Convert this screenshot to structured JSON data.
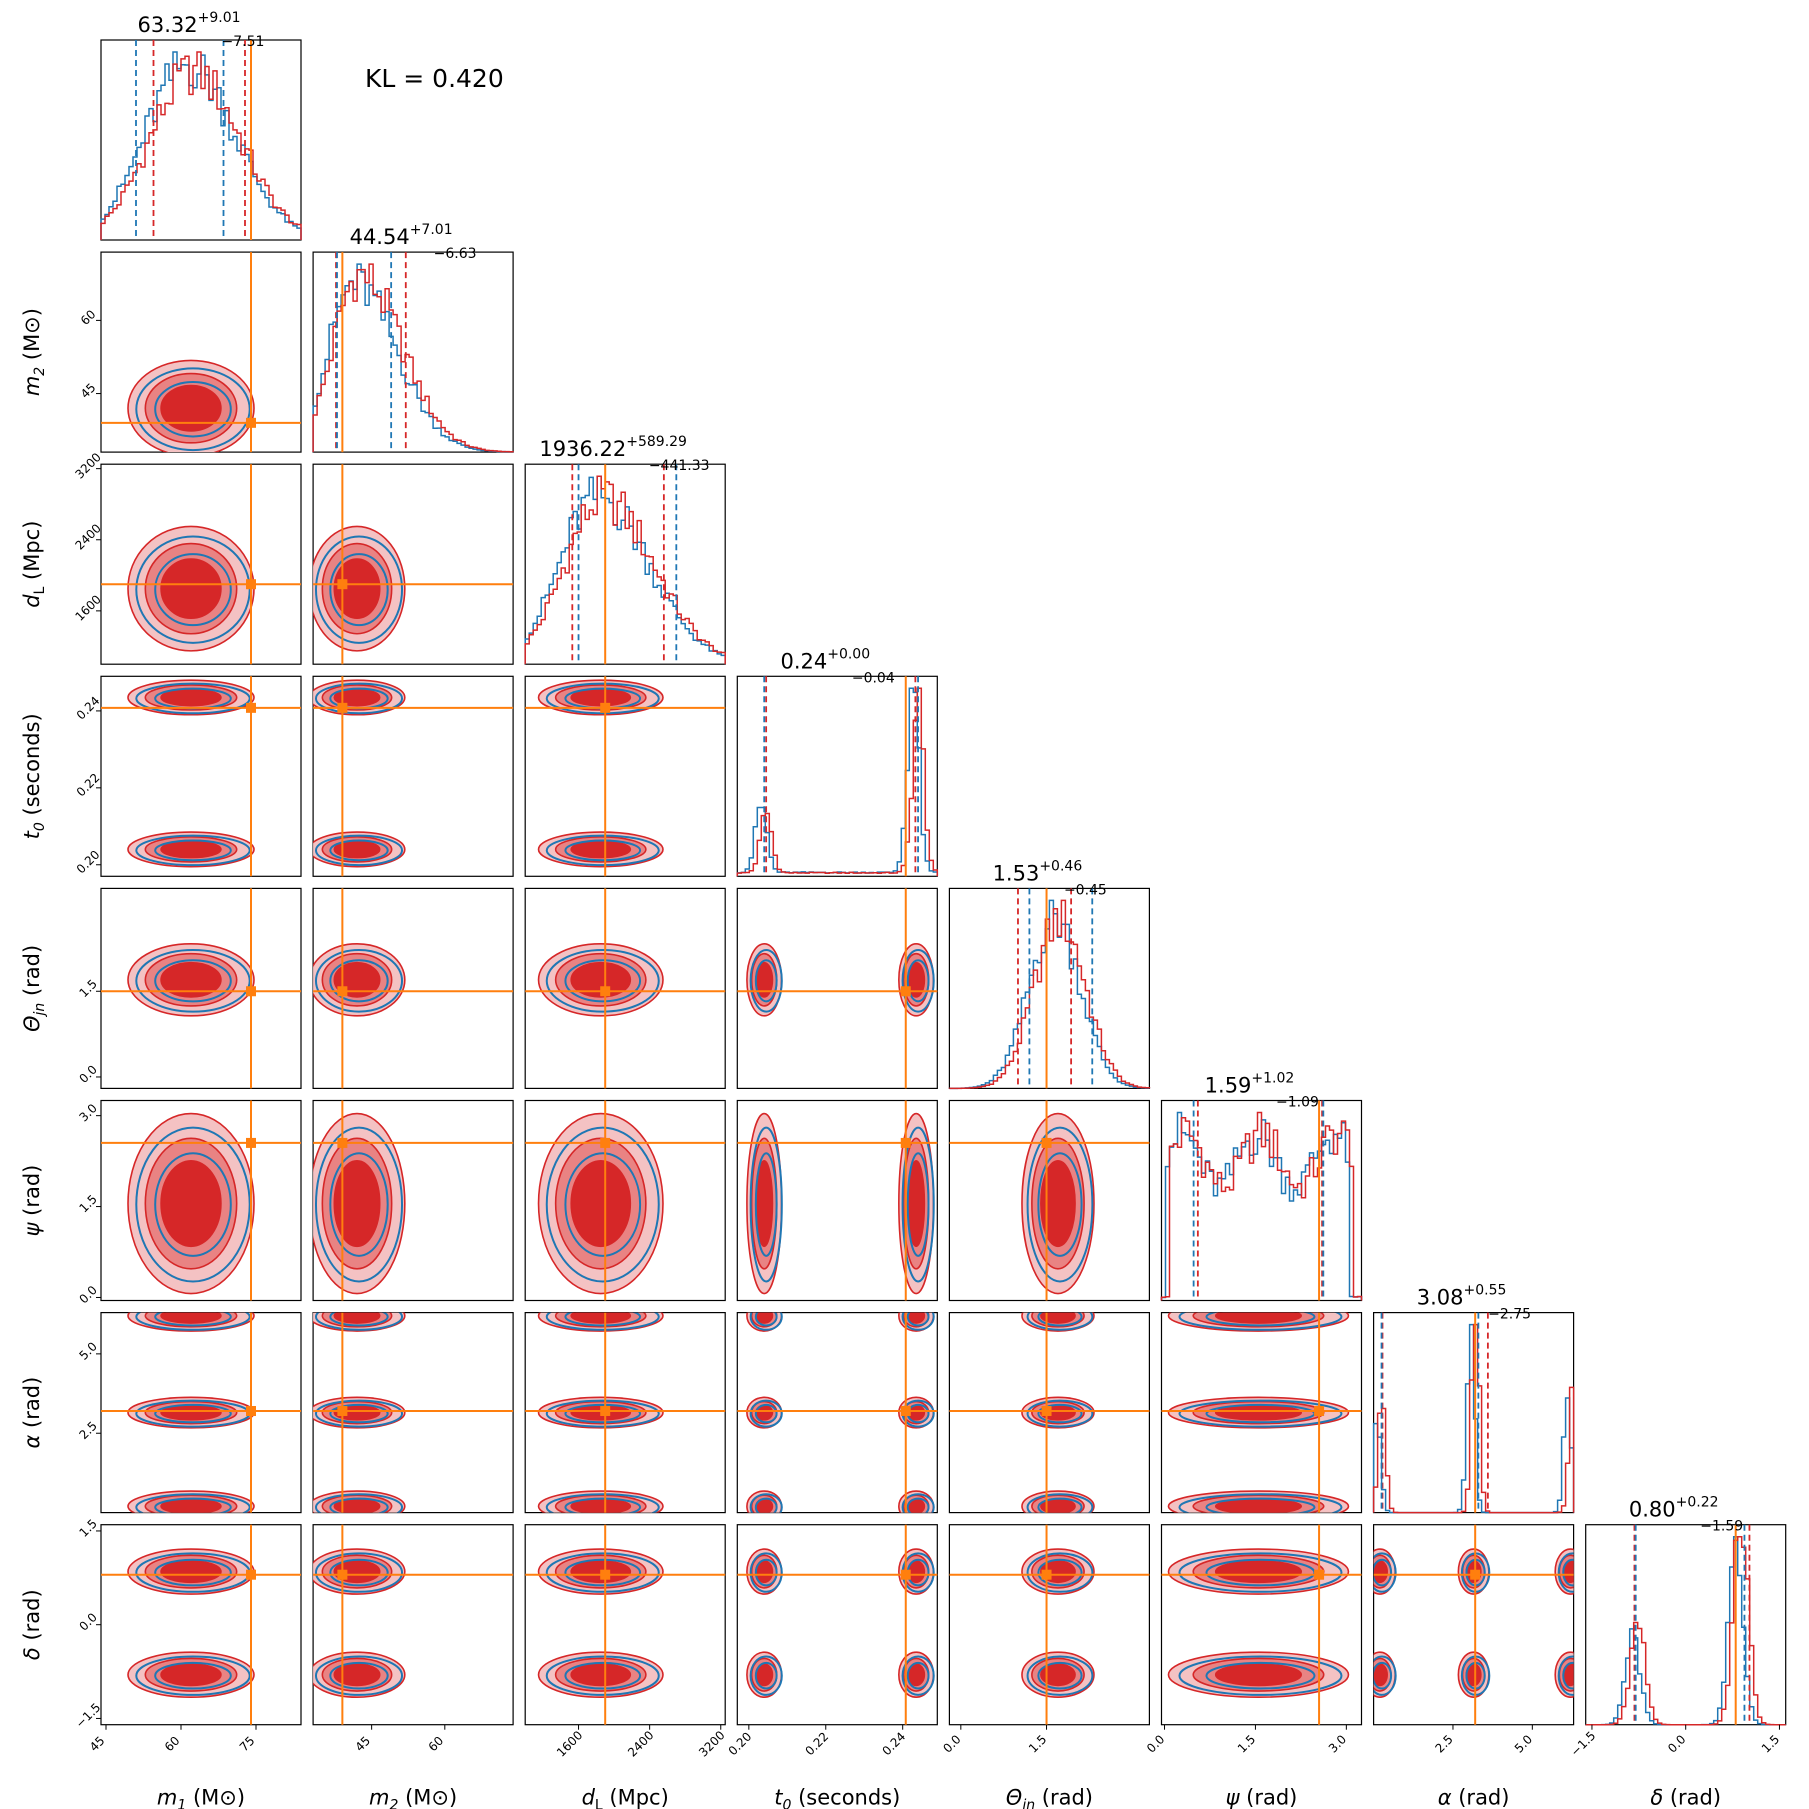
{
  "kl_text": "KL = 0.420",
  "colors": {
    "posterior_a": "#d62728",
    "posterior_b": "#1f77b4",
    "truth": "#ff7f0e"
  },
  "chart_data": {
    "type": "corner",
    "title": "",
    "parameters": [
      {
        "key": "m1",
        "label_main": "m",
        "label_sub": "1",
        "label_unit": " (M⊙)",
        "range": [
          44,
          84
        ],
        "ticks": [
          45,
          60,
          75
        ],
        "tick_labels": [
          "45",
          "60",
          "75"
        ],
        "truth": 74,
        "median": "63.32",
        "plus": "+9.01",
        "minus": "−7.51",
        "mode": 62,
        "spread": 9,
        "skew": 0.1,
        "shape": "gauss"
      },
      {
        "key": "m2",
        "label_main": "m",
        "label_sub": "2",
        "label_unit": " (M⊙)",
        "range": [
          33,
          74
        ],
        "ticks": [
          45,
          60
        ],
        "tick_labels": [
          "45",
          "60"
        ],
        "truth": 39,
        "median": "44.54",
        "plus": "+7.01",
        "minus": "−6.63",
        "mode": 42,
        "spread": 7,
        "skew": 0.5,
        "shape": "gauss"
      },
      {
        "key": "dl",
        "label_main": "d",
        "label_sub": "L",
        "label_unit": " (Mpc)",
        "range": [
          1000,
          3250
        ],
        "ticks": [
          1600,
          2400,
          3200
        ],
        "tick_labels": [
          "1600",
          "2400",
          "3200"
        ],
        "truth": 1900,
        "median": "1936.22",
        "plus": "+589.29",
        "minus": "−441.33",
        "mode": 1850,
        "spread": 500,
        "skew": 0.3,
        "shape": "gauss"
      },
      {
        "key": "t0",
        "label_main": "t",
        "label_sub": "0",
        "label_unit": " (seconds)",
        "range": [
          0.197,
          0.249
        ],
        "ticks": [
          0.2,
          0.22,
          0.24
        ],
        "tick_labels": [
          "0.20",
          "0.22",
          "0.24"
        ],
        "truth": 0.2408,
        "median": "0.24",
        "plus": "+0.00",
        "minus": "−0.04",
        "modes": [
          0.204,
          0.2435
        ],
        "spread": 0.0015,
        "shape": "bimodal"
      },
      {
        "key": "theta",
        "label_main": "Θ",
        "label_sub": "jn",
        "label_unit": " (rad)",
        "range": [
          -0.2,
          3.3
        ],
        "ticks": [
          0.0,
          1.5
        ],
        "tick_labels": [
          "0.0",
          "1.5"
        ],
        "truth": 1.5,
        "median": "1.53",
        "plus": "+0.46",
        "minus": "−0.45",
        "mode": 1.7,
        "spread": 0.45,
        "skew": 0,
        "shape": "gauss"
      },
      {
        "key": "psi",
        "label_main": "ψ",
        "label_sub": "",
        "label_unit": " (rad)",
        "range": [
          -0.05,
          3.25
        ],
        "ticks": [
          0.0,
          1.5,
          3.0
        ],
        "tick_labels": [
          "0.0",
          "1.5",
          "3.0"
        ],
        "truth": 2.55,
        "median": "1.59",
        "plus": "+1.02",
        "minus": "−1.09",
        "shape": "flat"
      },
      {
        "key": "alpha",
        "label_main": "α",
        "label_sub": "",
        "label_unit": " (rad)",
        "range": [
          0,
          6.3
        ],
        "ticks": [
          2.5,
          5.0
        ],
        "tick_labels": [
          "2.5",
          "5.0"
        ],
        "truth": 3.2,
        "median": "3.08",
        "plus": "+0.55",
        "minus": "−2.75",
        "modes": [
          0.2,
          3.15,
          6.2
        ],
        "spread": 0.12,
        "shape": "multi"
      },
      {
        "key": "delta",
        "label_main": "δ",
        "label_sub": "",
        "label_unit": " (rad)",
        "range": [
          -1.6,
          1.6
        ],
        "ticks": [
          -1.5,
          0.0,
          1.5
        ],
        "tick_labels": [
          "−1.5",
          "0.0",
          "1.5"
        ],
        "truth": 0.8,
        "median": "0.80",
        "plus": "+0.22",
        "minus": "−1.59",
        "modes": [
          -0.8,
          0.85
        ],
        "spread": 0.12,
        "shape": "bimodal"
      }
    ],
    "quantiles_a": [
      [
        54.5,
        72.8
      ],
      [
        37.7,
        52.0
      ],
      [
        1530,
        2560
      ],
      [
        0.2045,
        0.2433
      ],
      [
        1.0,
        1.93
      ],
      [
        0.55,
        2.6
      ],
      [
        0.28,
        3.6
      ],
      [
        -0.82,
        1.02
      ]
    ],
    "quantiles_b": [
      [
        51.0,
        68.5
      ],
      [
        37.9,
        49.0
      ],
      [
        1600,
        2700
      ],
      [
        0.204,
        0.244
      ],
      [
        1.2,
        2.3
      ],
      [
        0.48,
        2.62
      ],
      [
        0.25,
        3.3
      ],
      [
        -0.8,
        0.94
      ]
    ]
  }
}
